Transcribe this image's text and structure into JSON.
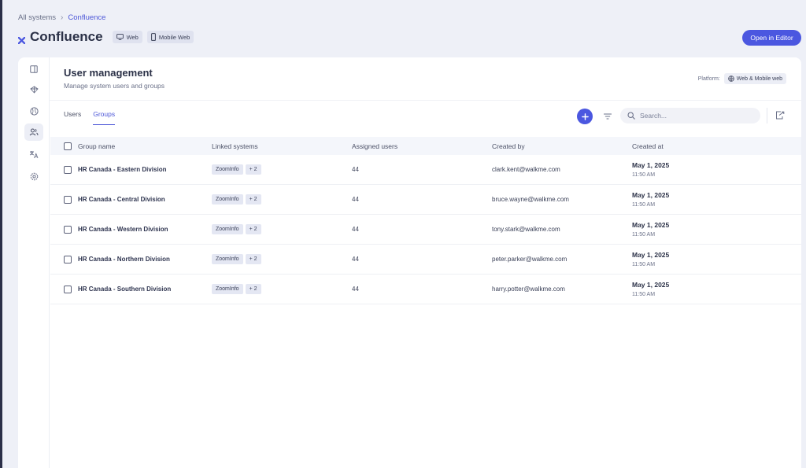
{
  "breadcrumb": {
    "root": "All systems",
    "current": "Confluence"
  },
  "app": {
    "title": "Confluence",
    "chips": [
      "Web",
      "Mobile Web"
    ],
    "open_editor": "Open in Editor"
  },
  "page": {
    "title": "User management",
    "subtitle": "Manage system users and groups",
    "platform_label": "Platform:",
    "platform_value": "Web & Mobile web"
  },
  "tabs": [
    "Users",
    "Groups"
  ],
  "active_tab": "Groups",
  "search": {
    "placeholder": "Search..."
  },
  "table": {
    "headers": [
      "Group name",
      "Linked systems",
      "Assigned users",
      "Created by",
      "Created at"
    ],
    "rows": [
      {
        "name": "HR Canada - Eastern Division",
        "linked": "ZoomInfo",
        "more": "+ 2",
        "assigned": "44",
        "created_by": "clark.kent@walkme.com",
        "date": "May 1, 2025",
        "time": "11:50 AM"
      },
      {
        "name": "HR Canada - Central Division",
        "linked": "ZoomInfo",
        "more": "+ 2",
        "assigned": "44",
        "created_by": "bruce.wayne@walkme.com",
        "date": "May 1, 2025",
        "time": "11:50 AM"
      },
      {
        "name": "HR Canada - Western Division",
        "linked": "ZoomInfo",
        "more": "+ 2",
        "assigned": "44",
        "created_by": "tony.stark@walkme.com",
        "date": "May 1, 2025",
        "time": "11:50 AM"
      },
      {
        "name": "HR Canada - Northern Division",
        "linked": "ZoomInfo",
        "more": "+ 2",
        "assigned": "44",
        "created_by": "peter.parker@walkme.com",
        "date": "May 1, 2025",
        "time": "11:50 AM"
      },
      {
        "name": "HR Canada - Southern Division",
        "linked": "ZoomInfo",
        "more": "+ 2",
        "assigned": "44",
        "created_by": "harry.potter@walkme.com",
        "date": "May 1, 2025",
        "time": "11:50 AM"
      }
    ]
  },
  "sidebar_icons": [
    "panel-icon",
    "deploy-icon",
    "globe-icon",
    "users-icon",
    "translate-icon",
    "settings-icon"
  ],
  "colors": {
    "accent": "#4b57e0",
    "background": "#eef0f7",
    "text": "#2f3550"
  }
}
